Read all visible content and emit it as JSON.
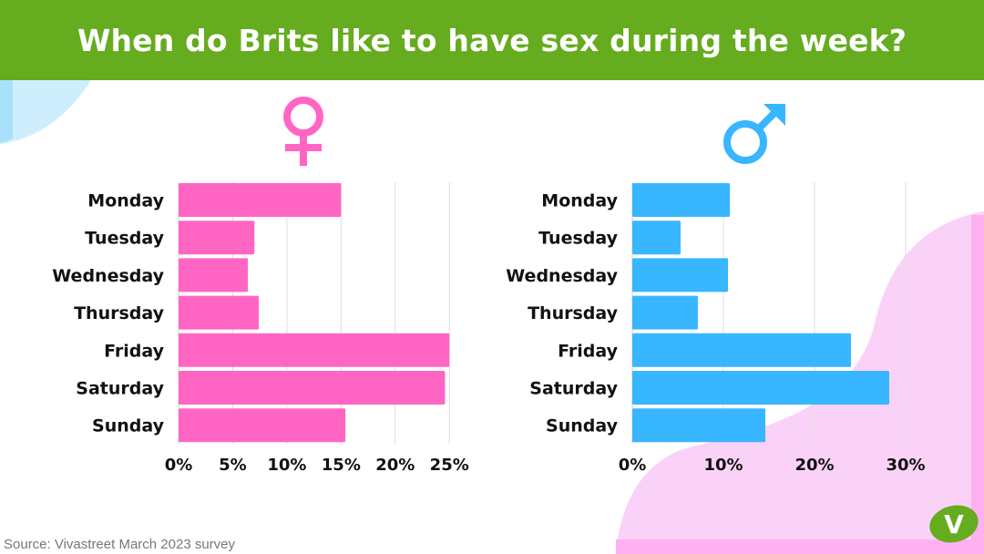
{
  "header": {
    "title": "When do Brits like to have sex during the week?"
  },
  "source": {
    "text": "Source: Vivastreet March 2023 survey"
  },
  "colors": {
    "header": "#65ac1e",
    "female": "#ff66c4",
    "male": "#38b6ff",
    "deco_pink": "#fbd2f7",
    "deco_blue": "#cfeefd"
  },
  "icons": {
    "female": "female-symbol-icon",
    "male": "male-symbol-icon",
    "logo": "vivastreet-logo-icon"
  },
  "logo": {
    "text": "V"
  },
  "chart_data": [
    {
      "type": "bar",
      "orientation": "horizontal",
      "symbol": "♀",
      "categories": [
        "Monday",
        "Tuesday",
        "Wednesday",
        "Thursday",
        "Friday",
        "Saturday",
        "Sunday"
      ],
      "values": [
        15,
        7,
        6.4,
        7.4,
        25,
        24.6,
        15.4
      ],
      "xlim": [
        0,
        27
      ],
      "xticks": [
        0,
        5,
        10,
        15,
        20,
        25
      ],
      "xtick_labels": [
        "0%",
        "5%",
        "10%",
        "15%",
        "20%",
        "25%"
      ],
      "color": "#ff66c4",
      "grid": true
    },
    {
      "type": "bar",
      "orientation": "horizontal",
      "symbol": "♂",
      "categories": [
        "Monday",
        "Tuesday",
        "Wednesday",
        "Thursday",
        "Friday",
        "Saturday",
        "Sunday"
      ],
      "values": [
        10.7,
        5.3,
        10.5,
        7.2,
        24,
        28.2,
        14.6
      ],
      "xlim": [
        0,
        33
      ],
      "xticks": [
        0,
        10,
        20,
        30
      ],
      "xtick_labels": [
        "0%",
        "10%",
        "20%",
        "30%"
      ],
      "color": "#38b6ff",
      "grid": true
    }
  ]
}
